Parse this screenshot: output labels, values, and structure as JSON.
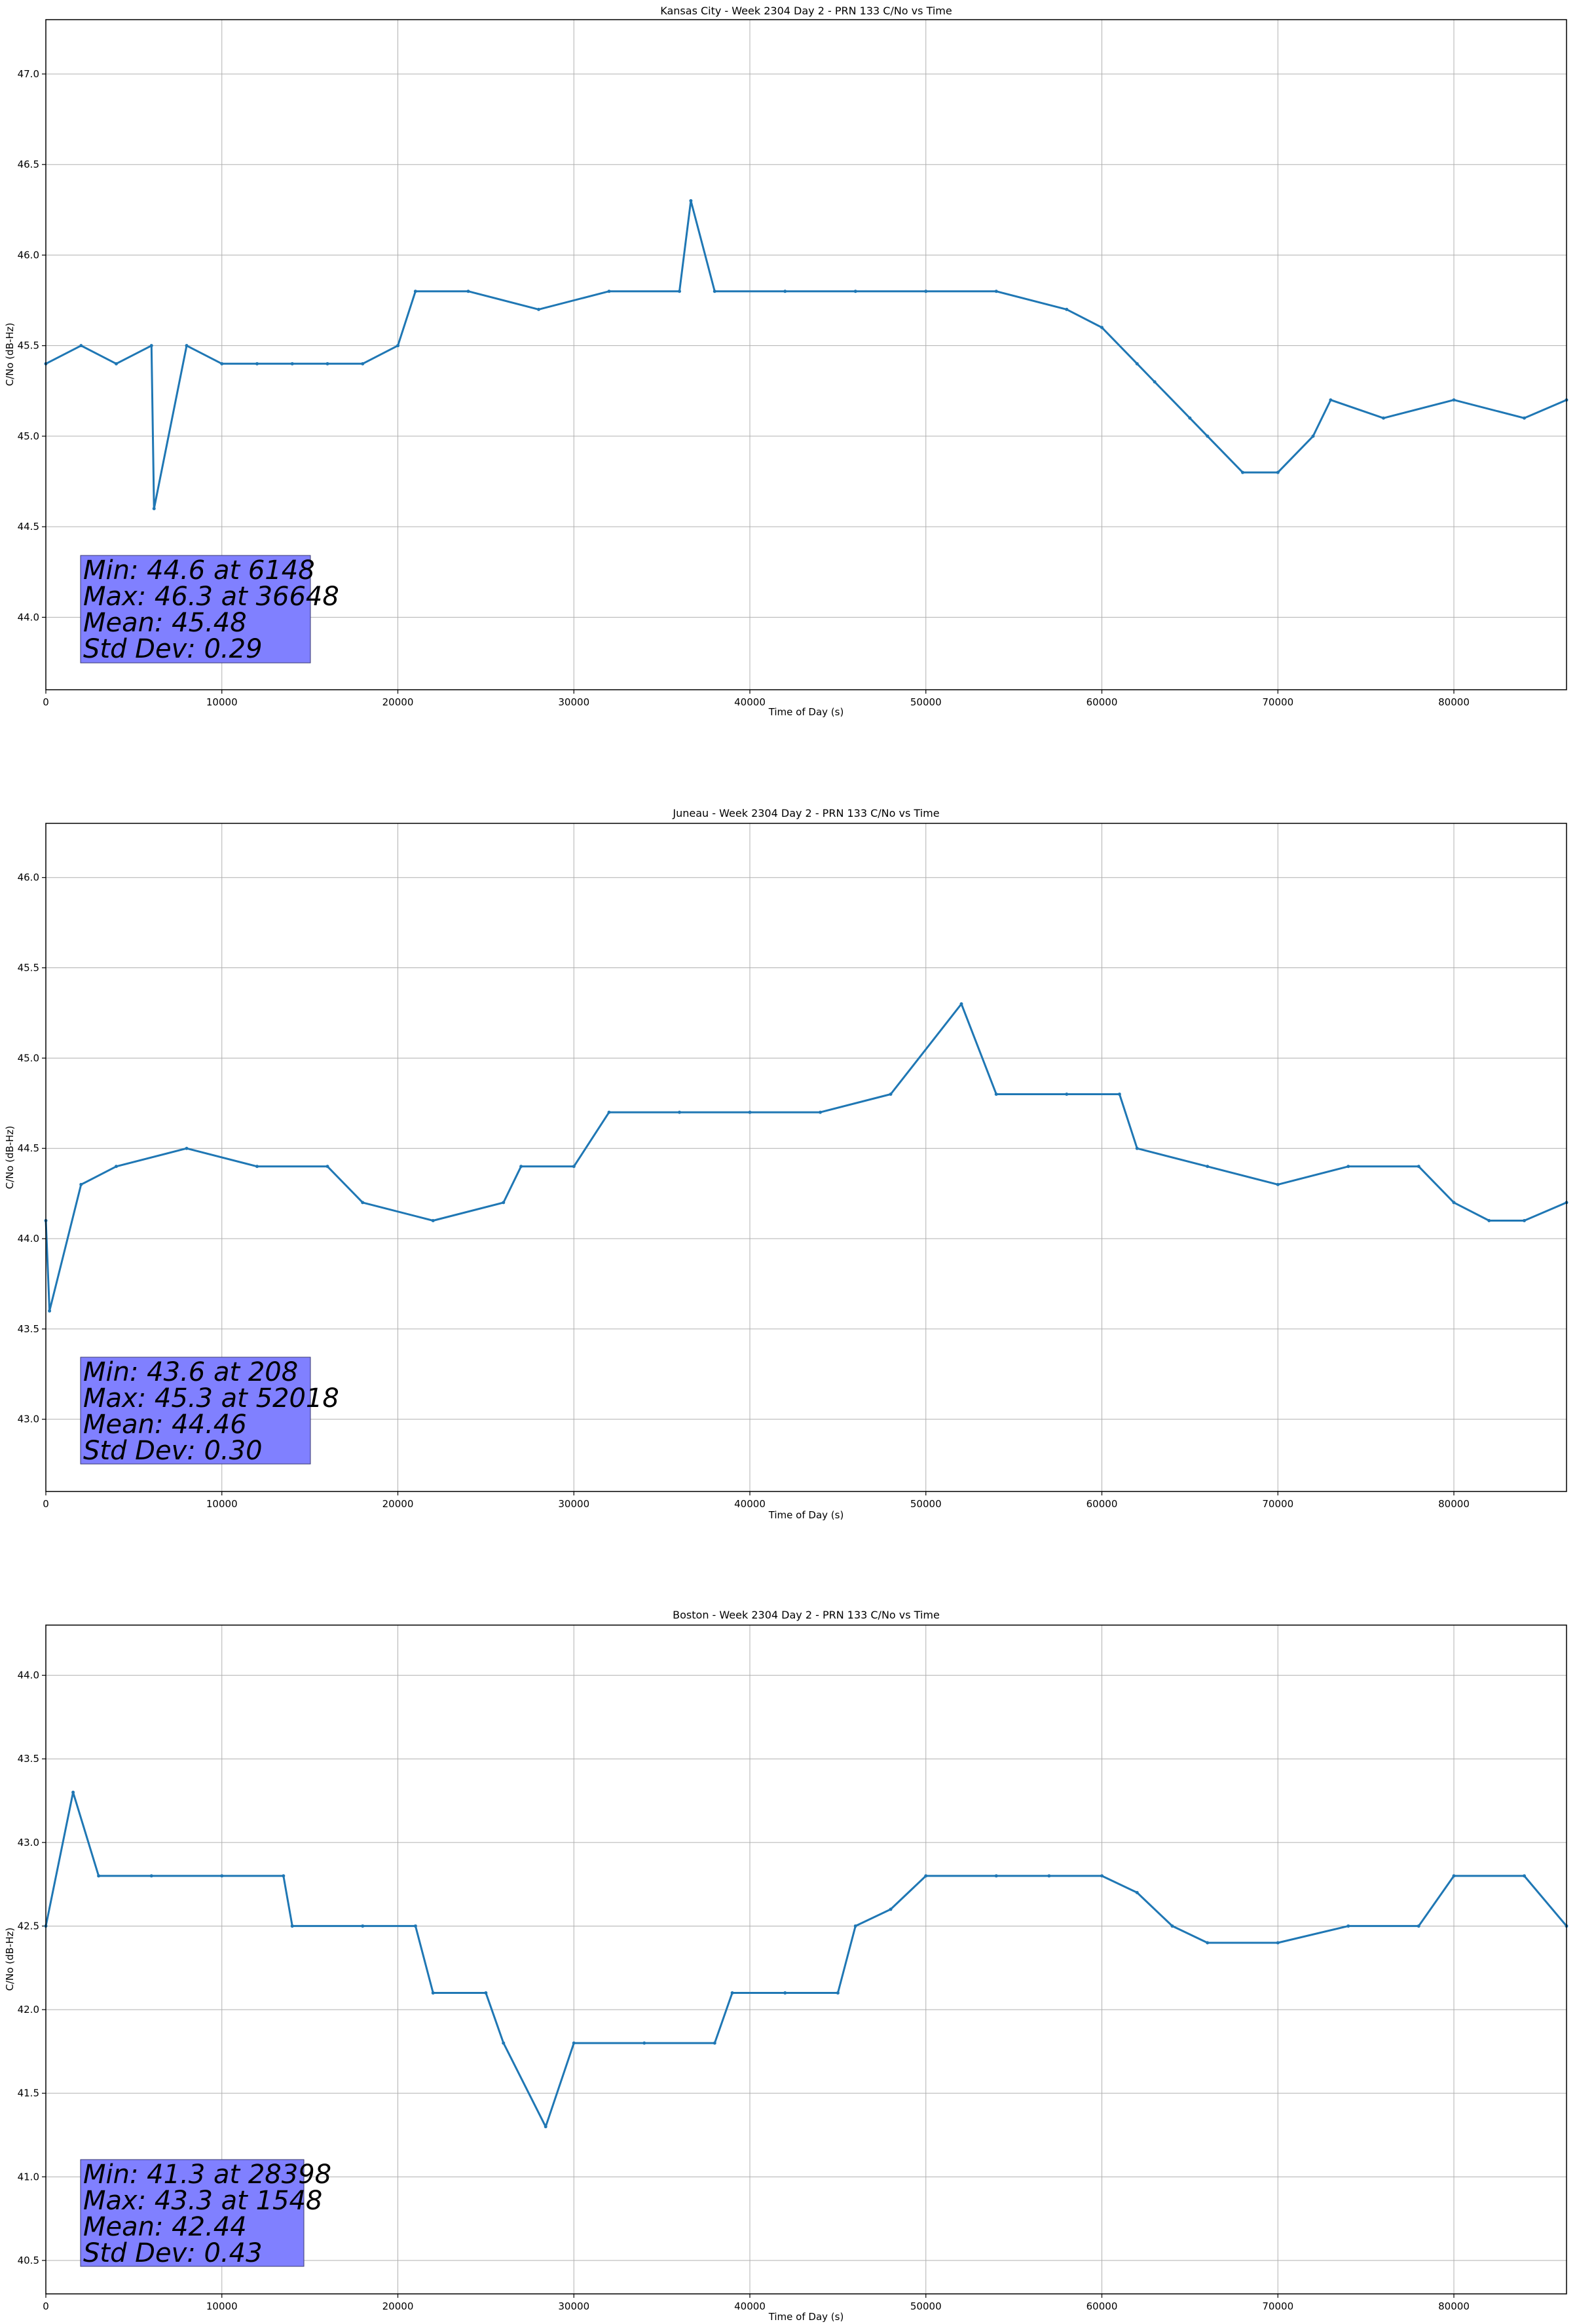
{
  "figure": {
    "line_color": "#1f77b4",
    "stats_box_color": "#8080ff",
    "grid_color": "#b0b0b0"
  },
  "chart_data": [
    {
      "type": "line",
      "title": "Kansas City - Week 2304 Day 2 - PRN 133 C/No vs Time",
      "xlabel": "Time of Day (s)",
      "ylabel": "C/No (dB-Hz)",
      "xlim": [
        0,
        86400
      ],
      "ylim": [
        43.6,
        47.3
      ],
      "xticks": [
        0,
        10000,
        20000,
        30000,
        40000,
        50000,
        60000,
        70000,
        80000
      ],
      "yticks": [
        44.0,
        44.5,
        45.0,
        45.5,
        46.0,
        46.5,
        47.0
      ],
      "grid": true,
      "x": [
        0,
        2000,
        4000,
        6000,
        6148,
        8000,
        10000,
        12000,
        14000,
        16000,
        18000,
        20000,
        21000,
        24000,
        28000,
        32000,
        36000,
        36648,
        38000,
        42000,
        46000,
        50000,
        54000,
        58000,
        60000,
        62000,
        63000,
        65000,
        66000,
        68000,
        70000,
        72000,
        73000,
        76000,
        80000,
        84000,
        86400
      ],
      "values": [
        45.4,
        45.5,
        45.4,
        45.5,
        44.6,
        45.5,
        45.4,
        45.4,
        45.4,
        45.4,
        45.4,
        45.5,
        45.8,
        45.8,
        45.7,
        45.8,
        45.8,
        46.3,
        45.8,
        45.8,
        45.8,
        45.8,
        45.8,
        45.7,
        45.6,
        45.4,
        45.3,
        45.1,
        45.0,
        44.8,
        44.8,
        45.0,
        45.2,
        45.1,
        45.2,
        45.1,
        45.2
      ],
      "stats": {
        "min_line": "Min: 44.6 at 6148",
        "max_line": "Max: 46.3 at 36648",
        "mean_line": "Mean: 45.48",
        "std_line": "Std Dev: 0.29"
      }
    },
    {
      "type": "line",
      "title": "Juneau - Week 2304 Day 2 - PRN 133 C/No vs Time",
      "xlabel": "Time of Day (s)",
      "ylabel": "C/No (dB-Hz)",
      "xlim": [
        0,
        86400
      ],
      "ylim": [
        42.6,
        46.3
      ],
      "xticks": [
        0,
        10000,
        20000,
        30000,
        40000,
        50000,
        60000,
        70000,
        80000
      ],
      "yticks": [
        43.0,
        43.5,
        44.0,
        44.5,
        45.0,
        45.5,
        46.0
      ],
      "grid": true,
      "x": [
        0,
        208,
        2000,
        4000,
        8000,
        12000,
        16000,
        18000,
        22000,
        26000,
        27000,
        30000,
        32000,
        36000,
        40000,
        44000,
        48000,
        52018,
        54000,
        58000,
        61000,
        62000,
        66000,
        70000,
        74000,
        78000,
        80000,
        82000,
        84000,
        86400
      ],
      "values": [
        44.1,
        43.6,
        44.3,
        44.4,
        44.5,
        44.4,
        44.4,
        44.2,
        44.1,
        44.2,
        44.4,
        44.4,
        44.7,
        44.7,
        44.7,
        44.7,
        44.8,
        45.3,
        44.8,
        44.8,
        44.8,
        44.5,
        44.4,
        44.3,
        44.4,
        44.4,
        44.2,
        44.1,
        44.1,
        44.2
      ],
      "stats": {
        "min_line": "Min: 43.6 at 208",
        "max_line": "Max: 45.3 at 52018",
        "mean_line": "Mean: 44.46",
        "std_line": "Std Dev: 0.30"
      }
    },
    {
      "type": "line",
      "title": "Boston - Week 2304 Day 2 - PRN 133 C/No vs Time",
      "xlabel": "Time of Day (s)",
      "ylabel": "C/No (dB-Hz)",
      "xlim": [
        0,
        86400
      ],
      "ylim": [
        40.3,
        44.3
      ],
      "xticks": [
        0,
        10000,
        20000,
        30000,
        40000,
        50000,
        60000,
        70000,
        80000
      ],
      "yticks": [
        40.5,
        41.0,
        41.5,
        42.0,
        42.5,
        43.0,
        43.5,
        44.0
      ],
      "grid": true,
      "x": [
        0,
        1548,
        3000,
        6000,
        10000,
        13500,
        14000,
        18000,
        21000,
        22000,
        25000,
        26000,
        28398,
        30000,
        34000,
        38000,
        39000,
        42000,
        45000,
        46000,
        48000,
        50000,
        54000,
        57000,
        60000,
        62000,
        64000,
        66000,
        70000,
        74000,
        78000,
        80000,
        84000,
        86400
      ],
      "values": [
        42.5,
        43.3,
        42.8,
        42.8,
        42.8,
        42.8,
        42.5,
        42.5,
        42.5,
        42.1,
        42.1,
        41.8,
        41.3,
        41.8,
        41.8,
        41.8,
        42.1,
        42.1,
        42.1,
        42.5,
        42.6,
        42.8,
        42.8,
        42.8,
        42.8,
        42.7,
        42.5,
        42.4,
        42.4,
        42.5,
        42.5,
        42.8,
        42.8,
        42.5
      ],
      "stats": {
        "min_line": "Min: 41.3 at 28398",
        "max_line": "Max: 43.3 at 1548",
        "mean_line": "Mean: 42.44",
        "std_line": "Std Dev: 0.43"
      }
    }
  ]
}
